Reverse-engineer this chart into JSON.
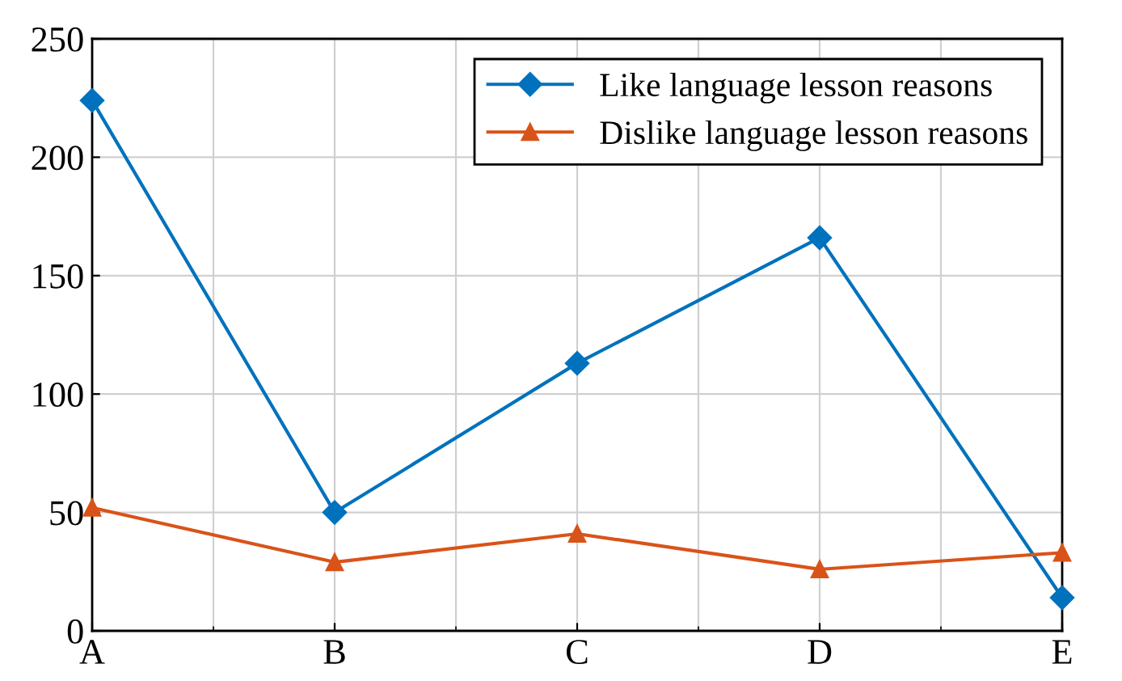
{
  "chart_data": {
    "type": "line",
    "categories": [
      "A",
      "B",
      "C",
      "D",
      "E"
    ],
    "series": [
      {
        "name": "Like language lesson reasons",
        "color": "#0072bd",
        "marker": "diamond",
        "values": [
          224,
          50,
          113,
          166,
          14
        ]
      },
      {
        "name": "Dislike language lesson reasons",
        "color": "#d95319",
        "marker": "triangle",
        "values": [
          52,
          29,
          41,
          26,
          33
        ]
      }
    ],
    "ylim": [
      0,
      250
    ],
    "yticks": [
      0,
      50,
      100,
      150,
      200,
      250
    ],
    "grid": true,
    "legend": "top right",
    "line_style": "solid"
  }
}
